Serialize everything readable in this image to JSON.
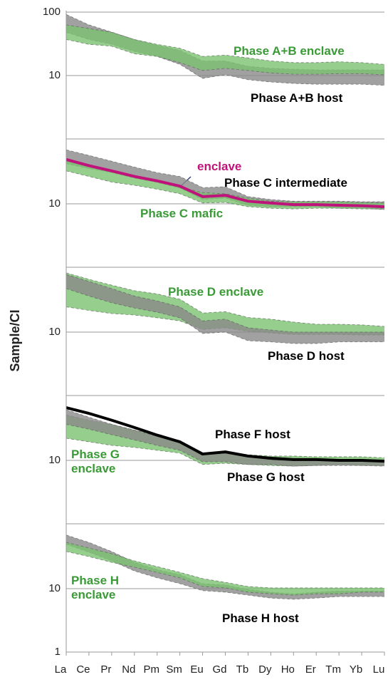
{
  "chart_data": [
    {
      "type": "band",
      "log": true,
      "grid": true,
      "ylim": [
        1,
        100
      ],
      "yticks": [
        10,
        100
      ],
      "series": [
        {
          "type": "band",
          "name": "Phase A+B host",
          "color": "#8a8a8a",
          "label_color": "#000000",
          "high": [
            92,
            63,
            48.5,
            37,
            30,
            25,
            17,
            17,
            14,
            13,
            12.6,
            12.3,
            12.3,
            12.3,
            12.3
          ],
          "low": [
            48,
            37,
            31,
            24,
            20,
            15,
            9,
            10.3,
            8.6,
            7.9,
            7.5,
            7.3,
            7.3,
            7.3,
            7
          ]
        },
        {
          "type": "band",
          "name": "Phase A+B enclave",
          "color": "#7cc272",
          "label_color": "#3a9a36",
          "high": [
            63,
            55,
            48,
            37,
            31,
            27,
            20,
            21,
            19,
            17,
            16,
            16,
            16.5,
            16,
            15
          ],
          "low": [
            37,
            31,
            29,
            22,
            20,
            16,
            12,
            13,
            12,
            11,
            10.5,
            10.5,
            10.7,
            10.7,
            10.3
          ]
        }
      ]
    },
    {
      "type": "band",
      "log": true,
      "grid": true,
      "ylim": [
        1,
        100
      ],
      "yticks": [
        10
      ],
      "series": [
        {
          "type": "band",
          "name": "Phase C intermediate",
          "color": "#8a8a8a",
          "label_color": "#000000",
          "high": [
            71,
            58,
            47,
            38,
            31,
            27,
            18,
            18.6,
            13,
            11.7,
            11,
            11,
            11,
            10.8,
            10.8
          ],
          "low": [
            43,
            36,
            31,
            25.4,
            21.7,
            17.7,
            11.7,
            12.3,
            9.5,
            9,
            9,
            9,
            8.5,
            8.5,
            8.1
          ]
        },
        {
          "type": "band",
          "name": "Phase C mafic",
          "color": "#7cc272",
          "label_color": "#3a9a36",
          "high": [
            48,
            40,
            33,
            27,
            23,
            18.6,
            15,
            14.4,
            12.3,
            11,
            10.8,
            10.8,
            10.8,
            10.5,
            10.3
          ],
          "low": [
            33,
            27,
            22,
            19.6,
            17,
            14.4,
            10.3,
            10.5,
            9,
            8.5,
            8.3,
            8.5,
            8.5,
            8.3,
            8.3
          ]
        },
        {
          "type": "line",
          "name": "enclave",
          "color": "#c0127b",
          "label_color": "#c0127b",
          "values": [
            50,
            40,
            33,
            27,
            23,
            19,
            13,
            13.6,
            11,
            10.3,
            9.7,
            9.7,
            9.5,
            9.3,
            9
          ]
        }
      ]
    },
    {
      "type": "band",
      "log": true,
      "grid": true,
      "ylim": [
        1,
        100
      ],
      "yticks": [
        10
      ],
      "ylabel": "Sample/CI",
      "series": [
        {
          "type": "band",
          "name": "Phase D enclave",
          "color": "#7cc272",
          "label_color": "#3a9a36",
          "high": [
            86,
            68,
            55,
            45,
            40,
            33,
            20,
            21,
            17,
            16,
            14.4,
            13.3,
            13.3,
            13,
            12.3
          ],
          "low": [
            25,
            22,
            19.6,
            18.6,
            16.8,
            15,
            11,
            11.7,
            10.3,
            9.7,
            9.2,
            9.2,
            9.2,
            9,
            9
          ]
        },
        {
          "type": "band",
          "name": "Phase D host",
          "color": "#8a8a8a",
          "label_color": "#000000",
          "high": [
            81,
            63,
            48.5,
            37,
            31,
            25,
            15,
            16,
            11.7,
            10.8,
            10,
            10,
            10,
            10,
            10
          ],
          "low": [
            48.5,
            37,
            29,
            24,
            20.6,
            16.8,
            9.5,
            10,
            7.3,
            7,
            6.6,
            6.6,
            7,
            7,
            7
          ]
        }
      ]
    },
    {
      "type": "band",
      "log": true,
      "grid": true,
      "ylim": [
        1,
        100
      ],
      "yticks": [
        10
      ],
      "series": [
        {
          "type": "band",
          "name": "Phase G enclave",
          "color": "#7cc272",
          "label_color": "#3a9a36",
          "high": [
            52,
            43,
            37,
            30,
            25,
            20.6,
            13,
            13.6,
            12.3,
            11.7,
            11.7,
            11.4,
            11.4,
            11.4,
            11
          ],
          "low": [
            22.3,
            19.6,
            17.2,
            16,
            14.4,
            13,
            8.6,
            9,
            8.6,
            8.3,
            8.1,
            8.3,
            8.6,
            8.3,
            8.3
          ]
        },
        {
          "type": "band",
          "name": "Phase G host",
          "color": "#8a8a8a",
          "label_color": "#000000",
          "high": [
            63,
            48,
            37,
            30,
            24,
            19.6,
            12.3,
            13,
            11.4,
            10.3,
            10,
            10,
            10,
            10,
            10
          ],
          "low": [
            37,
            31,
            25.4,
            21,
            17.2,
            14.4,
            9.5,
            9.5,
            8.6,
            8.6,
            8.1,
            8.3,
            8.3,
            8.3,
            8.1
          ]
        },
        {
          "type": "line",
          "name": "Phase F host",
          "color": "#000000",
          "label_color": "#000000",
          "values": [
            67.8,
            55,
            43,
            33,
            25,
            19.6,
            12.6,
            13.6,
            11.7,
            10.8,
            10.3,
            10.3,
            10,
            10,
            9.7
          ]
        }
      ]
    },
    {
      "type": "band",
      "log": true,
      "grid": true,
      "ylim": [
        1,
        100
      ],
      "yticks": [
        1,
        10
      ],
      "categories": [
        "La",
        "Ce",
        "Pr",
        "Nd",
        "Pm",
        "Sm",
        "Eu",
        "Gd",
        "Tb",
        "Dy",
        "Ho",
        "Er",
        "Tm",
        "Yb",
        "Lu"
      ],
      "series": [
        {
          "type": "band",
          "name": "Phase H host",
          "color": "#8a8a8a",
          "label_color": "#000000",
          "high": [
            70,
            53.6,
            38.5,
            26,
            20,
            16.6,
            12,
            11.4,
            9.7,
            8.8,
            8.3,
            8.8,
            9.2,
            9.2,
            9.2
          ],
          "low": [
            50,
            37.5,
            27.5,
            19,
            14.8,
            12,
            9.3,
            8.8,
            7.9,
            7.1,
            6.8,
            7.1,
            7.5,
            7.5,
            7.5
          ]
        },
        {
          "type": "band",
          "name": "Phase H enclave",
          "color": "#7cc272",
          "label_color": "#3a9a36",
          "high": [
            53.6,
            43.7,
            35.5,
            27.4,
            22.3,
            18.1,
            14.4,
            12.6,
            10.8,
            10.3,
            10.3,
            10.3,
            10.3,
            10.3,
            10.3
          ],
          "low": [
            38.5,
            32,
            26,
            21.8,
            18,
            14.8,
            10.8,
            10.3,
            8.8,
            8.3,
            7.9,
            8.3,
            8.3,
            8.8,
            8.8
          ]
        }
      ]
    }
  ]
}
